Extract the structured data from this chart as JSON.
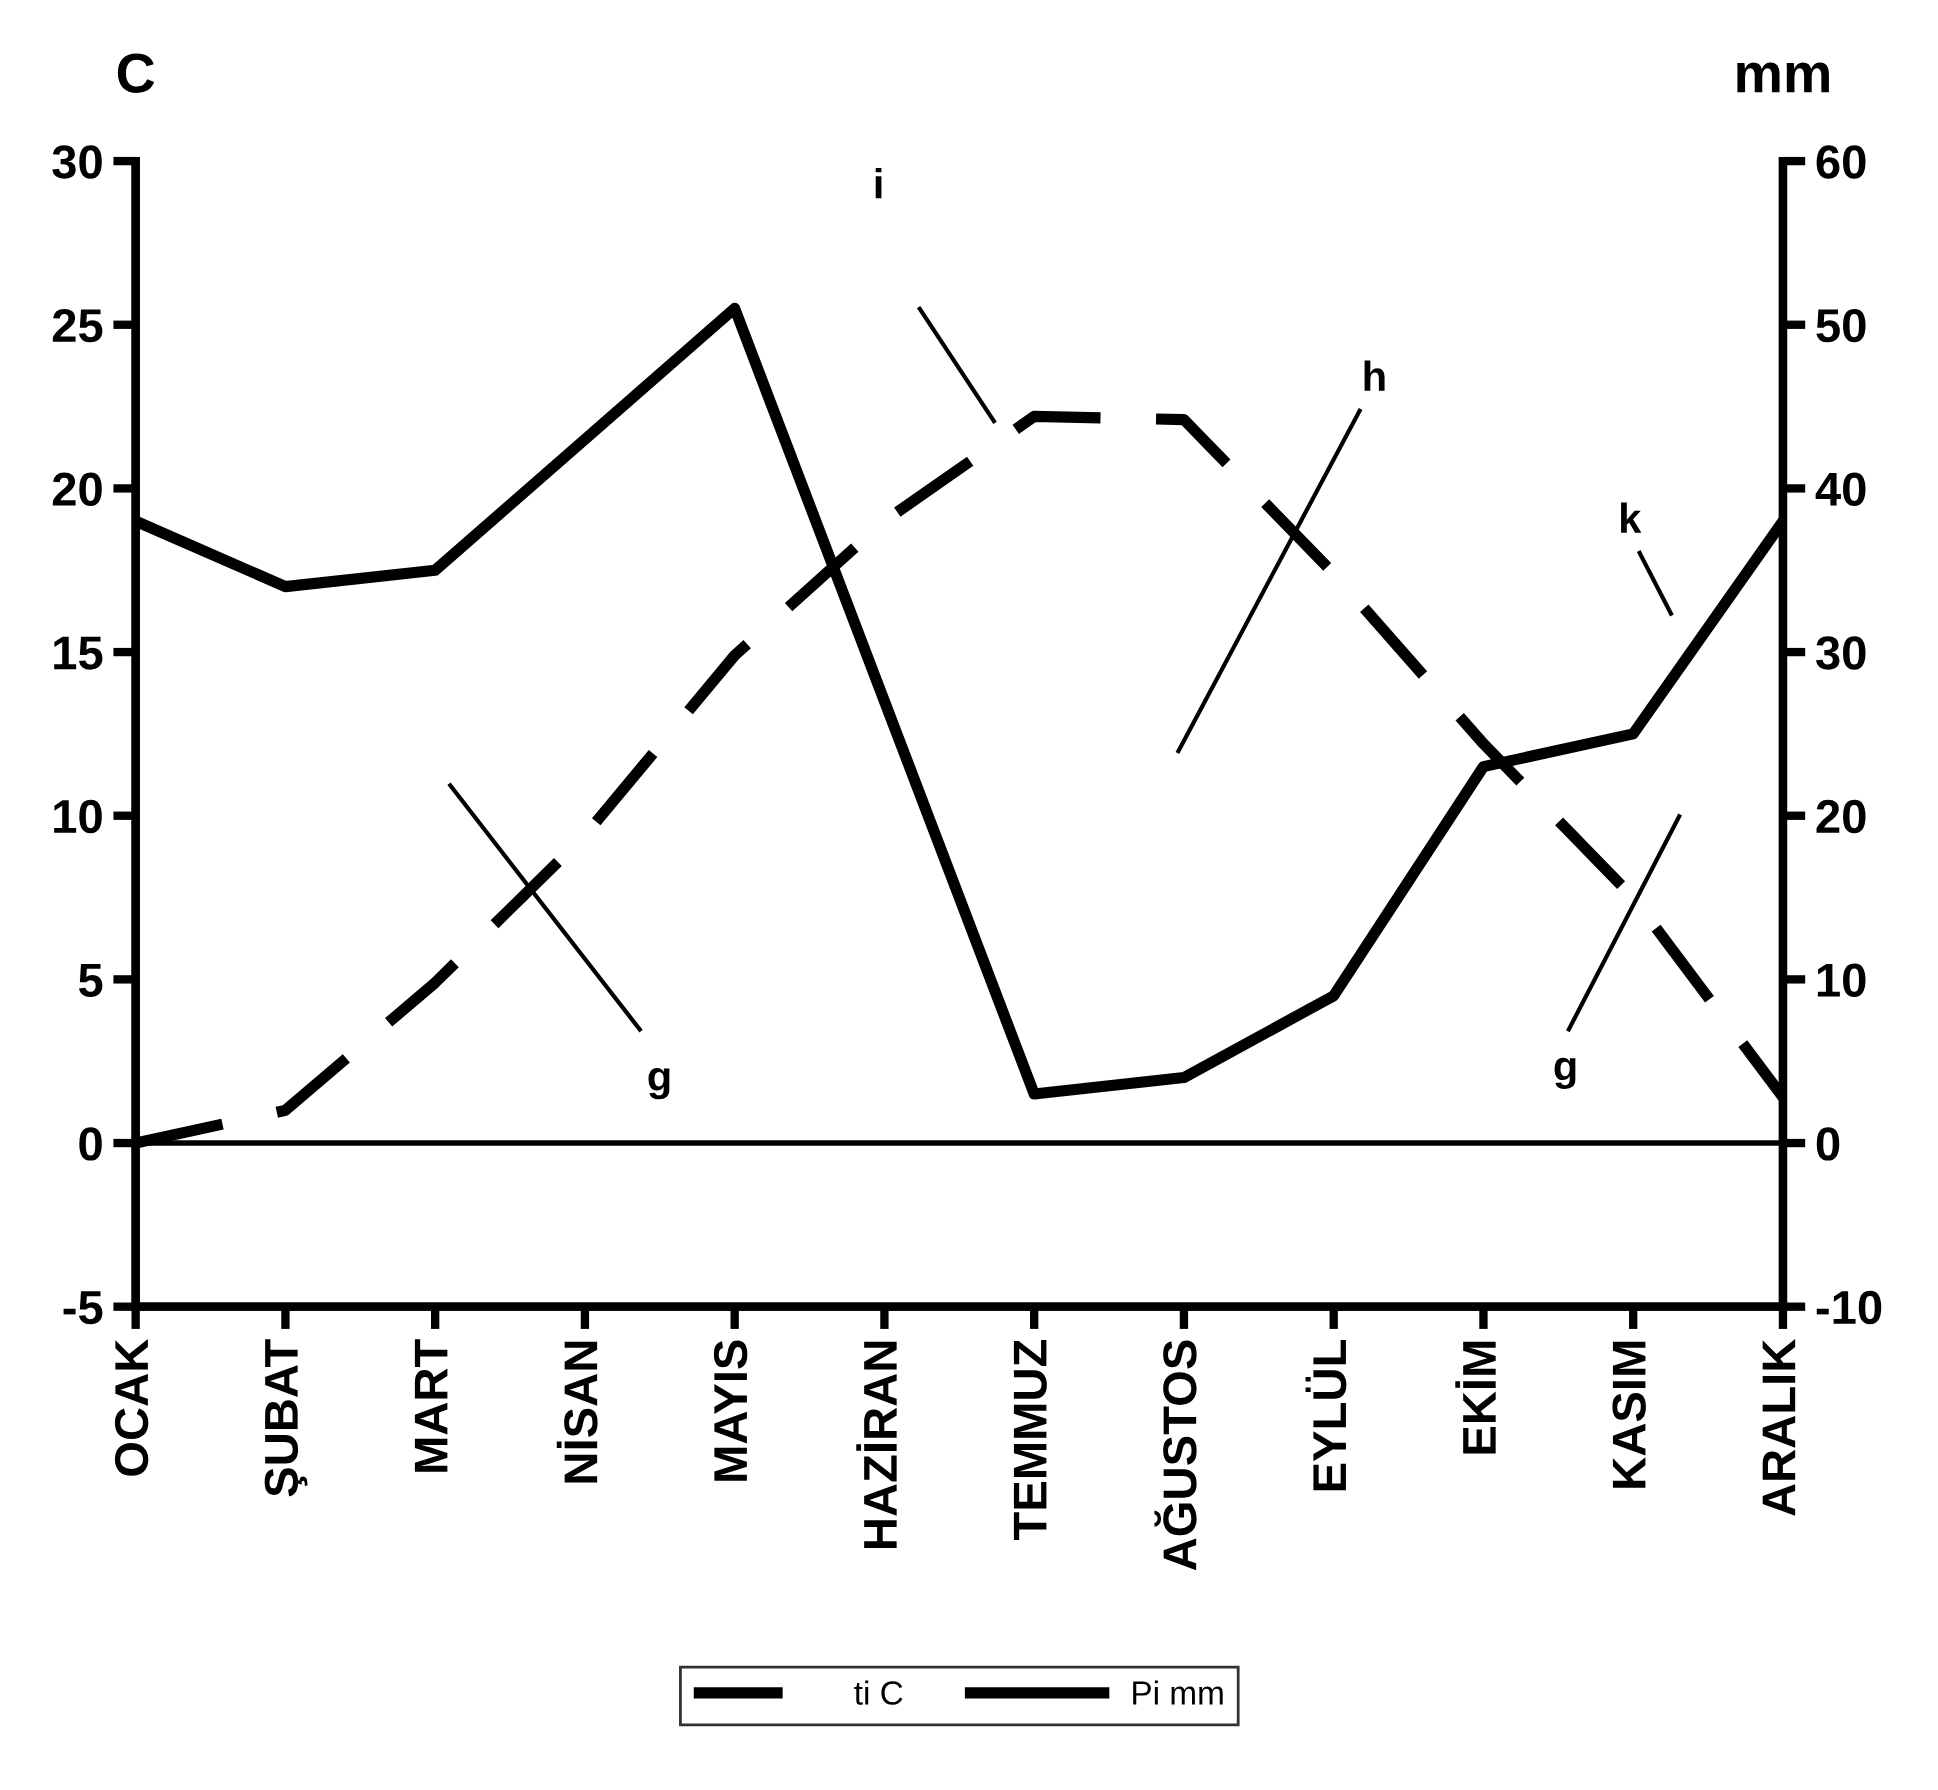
{
  "chart_data": {
    "type": "line",
    "ylabel": "C",
    "y2label": "mm",
    "categories": [
      "OCAK",
      "ŞUBAT",
      "MART",
      "NİSAN",
      "MAYIS",
      "HAZİRAN",
      "TEMMUZ",
      "AĞUSTOS",
      "EYLÜL",
      "EKİM",
      "KASIM",
      "ARALIK"
    ],
    "series": [
      {
        "name": "ti C",
        "color": "#000000",
        "line_style": "dashed",
        "values": [
          0,
          1,
          4.9,
          9.4,
          14.9,
          19,
          22.2,
          22.1,
          17.4,
          12.2,
          7.5,
          1.4
        ]
      },
      {
        "name": "Pi mm",
        "color": "#000000",
        "line_style": "solid",
        "axis": "y2",
        "values": [
          38,
          34,
          35,
          43,
          51,
          27,
          3,
          4,
          9,
          23,
          25,
          38
        ]
      }
    ],
    "ylim": [
      -5,
      30
    ],
    "yticks": [
      -5,
      0,
      5,
      10,
      15,
      20,
      25,
      30
    ],
    "y2lim": [
      -10,
      60
    ],
    "y2ticks": [
      -10,
      0,
      10,
      20,
      30,
      40,
      50,
      60
    ],
    "ref_lines": [
      {
        "axis": "y",
        "value": 0,
        "color": "#000000"
      }
    ],
    "annotations": [
      "i",
      "h",
      "g",
      "g",
      "k"
    ],
    "legend": "bottom",
    "grid": false,
    "marker": "none"
  }
}
